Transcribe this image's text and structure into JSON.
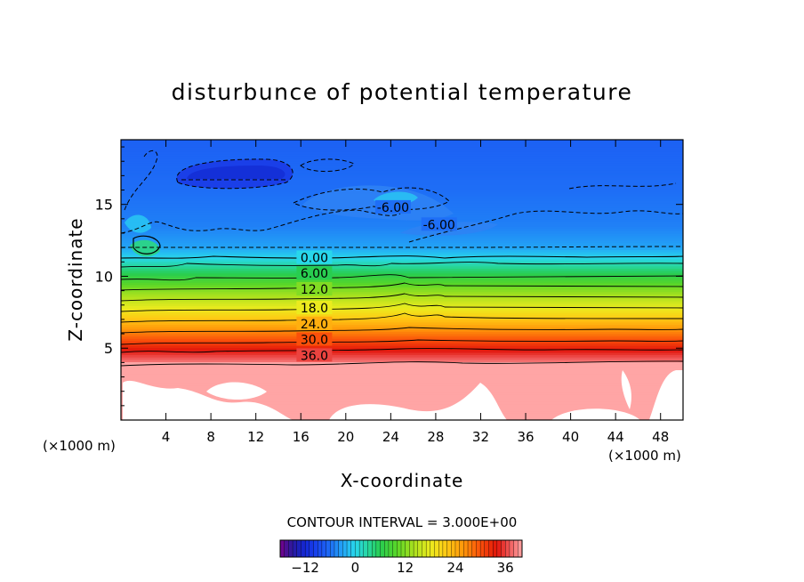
{
  "chart_data": {
    "type": "heatmap",
    "title": "disturbunce of potential temperature",
    "xlabel": "X-coordinate",
    "ylabel": "Z-coordinate",
    "x_unit_left": "(×1000 m)",
    "x_unit_right": "(×1000 m)",
    "xlim": [
      0,
      50
    ],
    "ylim": [
      0,
      19.5
    ],
    "x_ticks": [
      4,
      8,
      12,
      16,
      20,
      24,
      28,
      32,
      36,
      40,
      44,
      48
    ],
    "y_ticks": [
      5,
      10,
      15
    ],
    "contour_interval_text": "CONTOUR INTERVAL = 3.000E+00",
    "contour_labels": [
      {
        "text": "0.00",
        "x": 17.2,
        "z": 11.3
      },
      {
        "text": "6.00",
        "x": 17.2,
        "z": 10.2
      },
      {
        "text": "12.0",
        "x": 17.2,
        "z": 9.1
      },
      {
        "text": "18.0",
        "x": 17.2,
        "z": 7.8
      },
      {
        "text": "24.0",
        "x": 17.2,
        "z": 6.7
      },
      {
        "text": "30.0",
        "x": 17.2,
        "z": 5.6
      },
      {
        "text": "36.0",
        "x": 17.2,
        "z": 4.5
      },
      {
        "text": "-6.00",
        "x": 24.2,
        "z": 14.8
      },
      {
        "text": "-6.00",
        "x": 28.3,
        "z": 13.6
      }
    ],
    "field_profile": [
      {
        "z": 0,
        "theta": 40
      },
      {
        "z": 4.0,
        "theta": 40
      },
      {
        "z": 4.1,
        "theta": 38
      },
      {
        "z": 4.5,
        "theta": 36
      },
      {
        "z": 5.6,
        "theta": 30
      },
      {
        "z": 6.7,
        "theta": 24
      },
      {
        "z": 7.8,
        "theta": 18
      },
      {
        "z": 9.1,
        "theta": 12
      },
      {
        "z": 10.2,
        "theta": 6
      },
      {
        "z": 11.3,
        "theta": 0
      },
      {
        "z": 12.0,
        "theta": -3
      },
      {
        "z": 13.5,
        "theta": -5
      },
      {
        "z": 16.0,
        "theta": -6
      },
      {
        "z": 19.5,
        "theta": -7
      }
    ],
    "colorbar": {
      "min": -18,
      "max": 40,
      "ticks": [
        -12,
        0,
        12,
        24,
        36
      ],
      "tick_labels": [
        "−12",
        "0",
        "12",
        "24",
        "36"
      ]
    }
  }
}
